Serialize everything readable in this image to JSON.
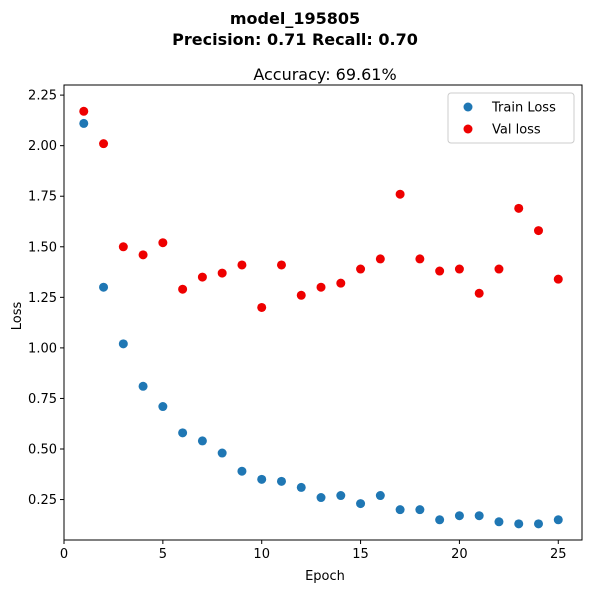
{
  "chart_data": {
    "type": "scatter",
    "suptitle_line1": "model_195805",
    "suptitle_line2": "Precision: 0.71 Recall: 0.70",
    "title": "Accuracy: 69.61%",
    "xlabel": "Epoch",
    "ylabel": "Loss",
    "xlim": [
      0,
      26.2
    ],
    "ylim": [
      0.05,
      2.3
    ],
    "xticks": [
      0,
      5,
      10,
      15,
      20,
      25
    ],
    "yticks": [
      0.25,
      0.5,
      0.75,
      1.0,
      1.25,
      1.5,
      1.75,
      2.0,
      2.25
    ],
    "xtick_labels": [
      "0",
      "5",
      "10",
      "15",
      "20",
      "25"
    ],
    "ytick_labels": [
      "0.25",
      "0.50",
      "0.75",
      "1.00",
      "1.25",
      "1.50",
      "1.75",
      "2.00",
      "2.25"
    ],
    "grid": false,
    "legend_position": "top-right",
    "x": [
      1,
      2,
      3,
      4,
      5,
      6,
      7,
      8,
      9,
      10,
      11,
      12,
      13,
      14,
      15,
      16,
      17,
      18,
      19,
      20,
      21,
      22,
      23,
      24,
      25
    ],
    "series": [
      {
        "name": "Train Loss",
        "color": "#1f77b4",
        "values": [
          2.11,
          1.3,
          1.02,
          0.81,
          0.71,
          0.58,
          0.54,
          0.48,
          0.39,
          0.35,
          0.34,
          0.31,
          0.26,
          0.27,
          0.23,
          0.27,
          0.2,
          0.2,
          0.15,
          0.17,
          0.17,
          0.14,
          0.13,
          0.13,
          0.15
        ]
      },
      {
        "name": "Val loss",
        "color": "#ee0000",
        "values": [
          2.17,
          2.01,
          1.5,
          1.46,
          1.52,
          1.29,
          1.35,
          1.37,
          1.41,
          1.2,
          1.41,
          1.26,
          1.3,
          1.32,
          1.39,
          1.44,
          1.76,
          1.44,
          1.38,
          1.39,
          1.27,
          1.39,
          1.69,
          1.58,
          1.34
        ]
      }
    ]
  }
}
